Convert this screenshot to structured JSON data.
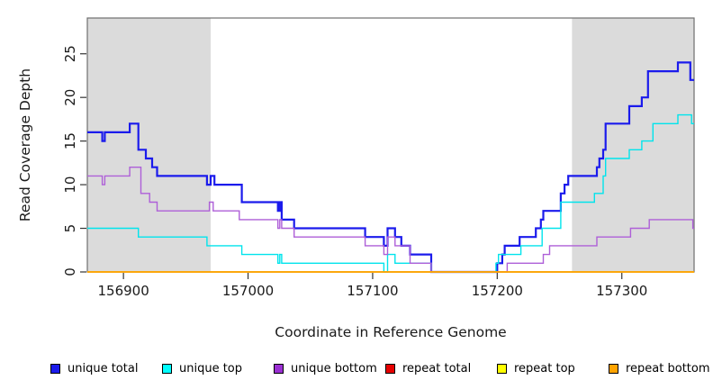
{
  "chart_data": {
    "type": "line",
    "step": true,
    "title": "",
    "xlabel": "Coordinate in Reference Genome",
    "ylabel": "Read Coverage Depth",
    "x_range": [
      156871,
      157358
    ],
    "y_range": [
      0,
      29.1
    ],
    "x_ticks": [
      156900,
      157000,
      157100,
      157200,
      157300
    ],
    "y_ticks": [
      0,
      5,
      10,
      15,
      20,
      25
    ],
    "grid": false,
    "legend_position": "bottom",
    "shade_color": "#DBDBDB",
    "shaded_regions": [
      {
        "x0": 156871,
        "x1": 156970
      },
      {
        "x0": 157260,
        "x1": 157358
      }
    ],
    "series": [
      {
        "name": "unique total",
        "color": "#1B1BEC",
        "width": 2.2,
        "points": [
          [
            156871,
            16
          ],
          [
            156883,
            15
          ],
          [
            156885,
            16
          ],
          [
            156905,
            17
          ],
          [
            156912,
            14
          ],
          [
            156918,
            13
          ],
          [
            156923,
            12
          ],
          [
            156927,
            11
          ],
          [
            156967,
            10
          ],
          [
            156970,
            11
          ],
          [
            156973,
            10
          ],
          [
            156995,
            8
          ],
          [
            157024,
            7
          ],
          [
            157025.5,
            8
          ],
          [
            157027,
            6
          ],
          [
            157037,
            5
          ],
          [
            157094,
            4
          ],
          [
            157109,
            3
          ],
          [
            157112,
            5
          ],
          [
            157118,
            4
          ],
          [
            157123,
            3
          ],
          [
            157130,
            2
          ],
          [
            157147,
            0
          ],
          [
            157200,
            1
          ],
          [
            157204,
            2
          ],
          [
            157206,
            3
          ],
          [
            157218,
            4
          ],
          [
            157231,
            5
          ],
          [
            157235,
            6
          ],
          [
            157237,
            7
          ],
          [
            157251,
            9
          ],
          [
            157254,
            10
          ],
          [
            157257,
            11
          ],
          [
            157280,
            12
          ],
          [
            157282,
            13
          ],
          [
            157285,
            14
          ],
          [
            157287,
            17
          ],
          [
            157306,
            19
          ],
          [
            157316,
            20
          ],
          [
            157321,
            23
          ],
          [
            157345,
            24
          ],
          [
            157355,
            22
          ]
        ]
      },
      {
        "name": "unique top",
        "color": "#00E4EC",
        "width": 1.4,
        "points": [
          [
            156871,
            5
          ],
          [
            156912,
            4
          ],
          [
            156967,
            3
          ],
          [
            156995,
            2
          ],
          [
            157024,
            1
          ],
          [
            157025.5,
            2
          ],
          [
            157027,
            1
          ],
          [
            157109,
            0
          ],
          [
            157112,
            2
          ],
          [
            157118,
            1
          ],
          [
            157147,
            0
          ],
          [
            157199,
            1
          ],
          [
            157201,
            2
          ],
          [
            157219,
            3
          ],
          [
            157236,
            5
          ],
          [
            157251,
            8
          ],
          [
            157278,
            9
          ],
          [
            157285,
            11
          ],
          [
            157287,
            13
          ],
          [
            157306,
            14
          ],
          [
            157316,
            15
          ],
          [
            157325,
            17
          ],
          [
            157345,
            18
          ],
          [
            157356,
            17
          ]
        ]
      },
      {
        "name": "unique bottom",
        "color": "#AE5FD8",
        "width": 1.4,
        "points": [
          [
            156871,
            11
          ],
          [
            156883,
            10
          ],
          [
            156885,
            11
          ],
          [
            156905,
            12
          ],
          [
            156914,
            9
          ],
          [
            156921,
            8
          ],
          [
            156927,
            7
          ],
          [
            156969,
            8
          ],
          [
            156972,
            7
          ],
          [
            156993,
            6
          ],
          [
            157024,
            5
          ],
          [
            157025.5,
            6
          ],
          [
            157027,
            5
          ],
          [
            157037,
            4
          ],
          [
            157094,
            3
          ],
          [
            157109,
            2
          ],
          [
            157112,
            4
          ],
          [
            157118,
            3
          ],
          [
            157130,
            1
          ],
          [
            157147,
            0
          ],
          [
            157208,
            1
          ],
          [
            157237,
            2
          ],
          [
            157242,
            3
          ],
          [
            157280,
            4
          ],
          [
            157307,
            5
          ],
          [
            157322,
            6
          ],
          [
            157357,
            5
          ]
        ]
      },
      {
        "name": "repeat total",
        "color": "#E60000",
        "width": 1.4,
        "points": [
          [
            156871,
            0
          ]
        ]
      },
      {
        "name": "repeat top",
        "color": "#FFFF00",
        "width": 1.4,
        "points": [
          [
            156871,
            0
          ]
        ]
      },
      {
        "name": "repeat bottom",
        "color": "#FFA300",
        "width": 1.6,
        "points": [
          [
            156871,
            0
          ]
        ]
      }
    ],
    "legend": [
      {
        "label": "unique total",
        "color": "#1B1BEC"
      },
      {
        "label": "unique top",
        "color": "#00FFFF"
      },
      {
        "label": "unique bottom",
        "color": "#9B30D3"
      },
      {
        "label": "repeat total",
        "color": "#E60000"
      },
      {
        "label": "repeat top",
        "color": "#FFFF00"
      },
      {
        "label": "repeat bottom",
        "color": "#FFA300"
      }
    ]
  }
}
